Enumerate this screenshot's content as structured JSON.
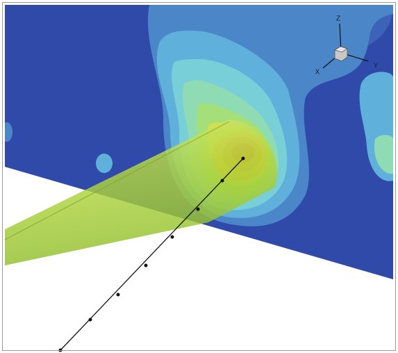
{
  "axes_triad": {
    "z_label": "Z",
    "x_label": "X",
    "y_label": "Y"
  }
}
